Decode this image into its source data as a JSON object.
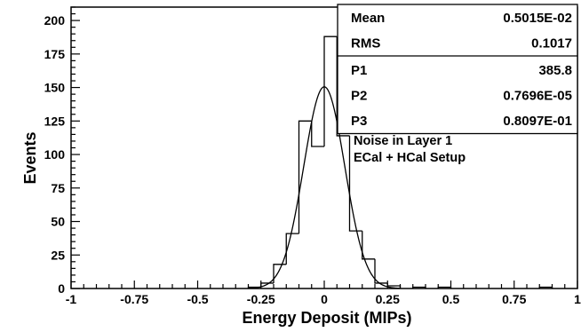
{
  "chart_data": {
    "type": "histogram",
    "xlabel": "Energy Deposit (MIPs)",
    "ylabel": "Events",
    "xlim": [
      -1,
      1
    ],
    "ylim": [
      0,
      210
    ],
    "x_ticks": [
      -1,
      -0.75,
      -0.5,
      -0.25,
      0,
      0.25,
      0.5,
      0.75,
      1
    ],
    "x_tick_labels": [
      "-1",
      "-0.75",
      "-0.5",
      "-0.25",
      "0",
      "0.25",
      "0.5",
      "0.75",
      "1"
    ],
    "y_ticks": [
      0,
      25,
      50,
      75,
      100,
      125,
      150,
      175,
      200
    ],
    "y_tick_labels": [
      "0",
      "25",
      "50",
      "75",
      "100",
      "125",
      "150",
      "175",
      "200"
    ],
    "bins": [
      {
        "x0": -0.3,
        "x1": -0.25,
        "value": 1
      },
      {
        "x0": -0.25,
        "x1": -0.2,
        "value": 4
      },
      {
        "x0": -0.2,
        "x1": -0.15,
        "value": 18
      },
      {
        "x0": -0.15,
        "x1": -0.1,
        "value": 41
      },
      {
        "x0": -0.1,
        "x1": -0.05,
        "value": 125
      },
      {
        "x0": -0.05,
        "x1": 0.0,
        "value": 106
      },
      {
        "x0": 0.0,
        "x1": 0.05,
        "value": 188
      },
      {
        "x0": 0.05,
        "x1": 0.1,
        "value": 114
      },
      {
        "x0": 0.1,
        "x1": 0.15,
        "value": 43
      },
      {
        "x0": 0.15,
        "x1": 0.2,
        "value": 22
      },
      {
        "x0": 0.2,
        "x1": 0.25,
        "value": 4
      },
      {
        "x0": 0.25,
        "x1": 0.3,
        "value": 2
      },
      {
        "x0": 0.3,
        "x1": 0.35,
        "value": 0
      },
      {
        "x0": 0.35,
        "x1": 0.4,
        "value": 1
      },
      {
        "x0": 0.4,
        "x1": 0.45,
        "value": 0
      },
      {
        "x0": 0.45,
        "x1": 0.5,
        "value": 1
      },
      {
        "x0": 0.85,
        "x1": 0.9,
        "value": 1
      }
    ],
    "fit": {
      "type": "gaussian",
      "amplitude": 150.5,
      "mean": 0.0,
      "sigma": 0.081
    },
    "stats": [
      {
        "label": "Mean",
        "value": "0.5015E-02"
      },
      {
        "label": "RMS",
        "value": "0.1017"
      },
      {
        "label": "P1",
        "value": "385.8"
      },
      {
        "label": "P2",
        "value": "0.7696E-05"
      },
      {
        "label": "P3",
        "value": "0.8097E-01"
      }
    ],
    "annotation": [
      "Noise in Layer 1",
      "ECal + HCal Setup"
    ]
  }
}
